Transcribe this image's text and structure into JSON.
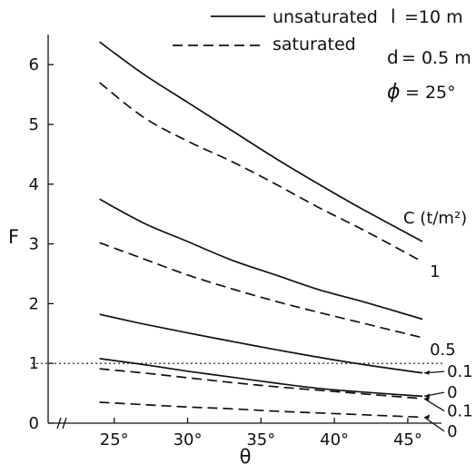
{
  "chart_data": {
    "type": "line",
    "xlabel": "θ",
    "ylabel": "F",
    "xlim": [
      20.5,
      47.5
    ],
    "ylim": [
      0,
      6.5
    ],
    "x_ticks": [
      25,
      30,
      35,
      40,
      45
    ],
    "x_tick_labels": [
      "25°",
      "30°",
      "35°",
      "40°",
      "45°"
    ],
    "y_ticks": [
      0,
      1,
      2,
      3,
      4,
      5,
      6
    ],
    "y_tick_labels": [
      "0",
      "1",
      "2",
      "3",
      "4",
      "5",
      "6"
    ],
    "legend": [
      {
        "label": "unsaturated",
        "style": "solid"
      },
      {
        "label": "saturated",
        "style": "dashed"
      }
    ],
    "parameters": [
      {
        "symbol": "l",
        "value": "=10 m"
      },
      {
        "symbol": "d",
        "value": "= 0.5 m"
      },
      {
        "symbol": "ϕ",
        "value": "= 25°"
      }
    ],
    "parameter_header": "C (t/m²)",
    "reference_line": {
      "y": 1,
      "style": "dotted"
    },
    "grid": false,
    "x": [
      24,
      27,
      30,
      33,
      36,
      39,
      42,
      46
    ],
    "series": [
      {
        "c_label": "1",
        "style": "solid",
        "values": [
          6.38,
          5.84,
          5.37,
          4.9,
          4.43,
          3.99,
          3.57,
          3.04
        ]
      },
      {
        "c_label": "1",
        "style": "dashed",
        "values": [
          5.7,
          5.12,
          4.72,
          4.38,
          4.0,
          3.6,
          3.23,
          2.7
        ]
      },
      {
        "c_label": "0.5",
        "style": "solid",
        "values": [
          3.75,
          3.35,
          3.04,
          2.73,
          2.48,
          2.23,
          2.03,
          1.74
        ]
      },
      {
        "c_label": "0.5",
        "style": "dashed",
        "values": [
          3.02,
          2.75,
          2.48,
          2.25,
          2.04,
          1.85,
          1.67,
          1.43
        ]
      },
      {
        "c_label": "0.1",
        "style": "solid",
        "values": [
          1.82,
          1.66,
          1.51,
          1.37,
          1.23,
          1.1,
          0.98,
          0.84
        ]
      },
      {
        "c_label": "0",
        "style": "solid",
        "values": [
          1.08,
          0.98,
          0.87,
          0.77,
          0.67,
          0.58,
          0.52,
          0.45
        ]
      },
      {
        "c_label": "0.1",
        "style": "dashed",
        "values": [
          0.91,
          0.84,
          0.76,
          0.68,
          0.61,
          0.55,
          0.49,
          0.41
        ]
      },
      {
        "c_label": "0",
        "style": "dashed",
        "values": [
          0.35,
          0.31,
          0.27,
          0.24,
          0.2,
          0.17,
          0.14,
          0.1
        ]
      }
    ],
    "right_labels": [
      {
        "text": "1",
        "y": 2.55
      },
      {
        "text": "0.5",
        "y": 1.25
      },
      {
        "text": "0.1",
        "y": 0.88
      },
      {
        "text": "0",
        "y": 0.53
      },
      {
        "text": "0.1",
        "y": 0.22
      },
      {
        "text": "0",
        "y": -0.12
      }
    ]
  }
}
